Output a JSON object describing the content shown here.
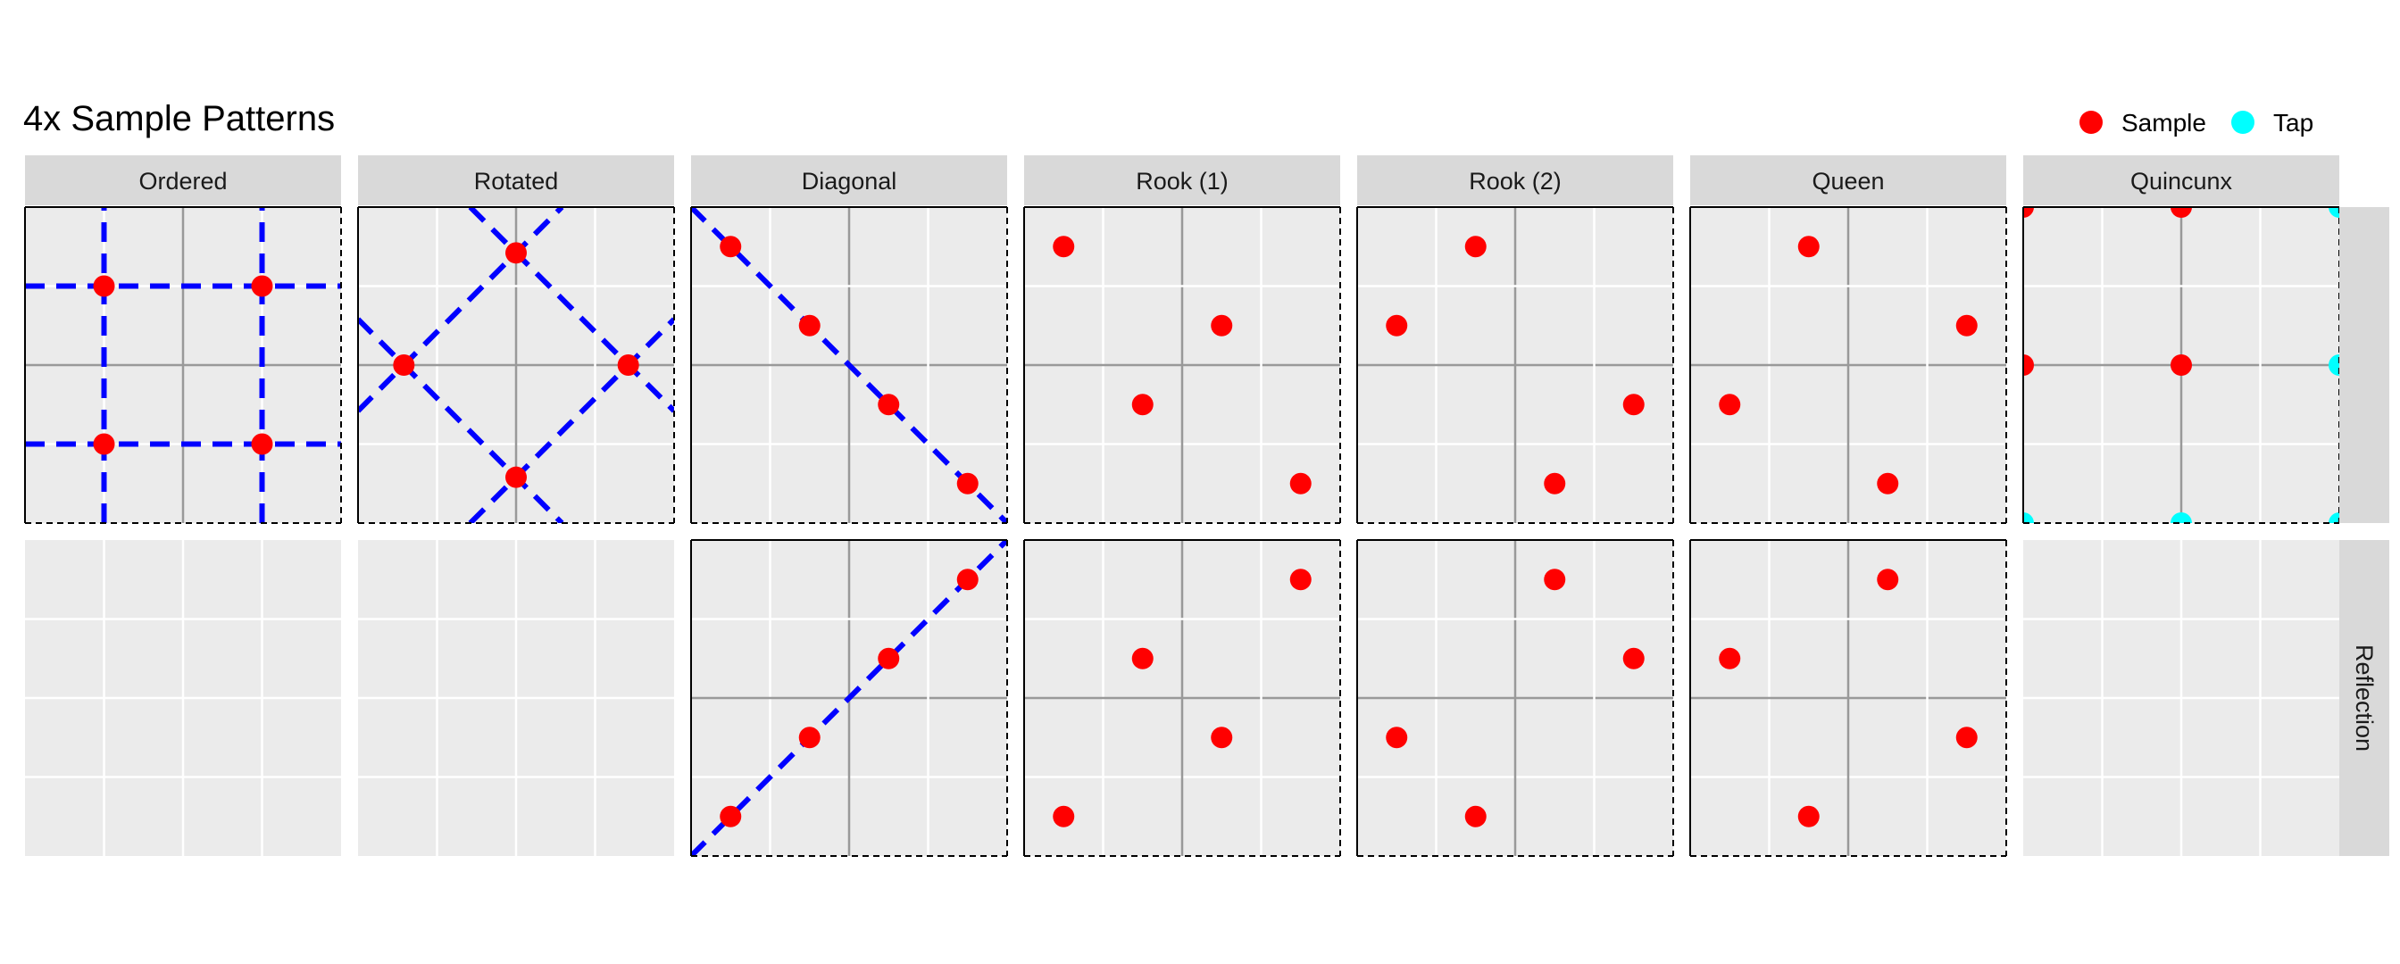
{
  "chart_data": {
    "type": "scatter",
    "title": "4x Sample Patterns",
    "legend": {
      "placement": "top-right",
      "entries": [
        {
          "label": "Sample",
          "color": "#ff0000"
        },
        {
          "label": "Tap",
          "color": "#00ffff"
        }
      ]
    },
    "panel_columns": [
      "Ordered",
      "Rotated",
      "Diagonal",
      "Rook (1)",
      "Rook (2)",
      "Queen",
      "Quincunx"
    ],
    "panel_rows": [
      "",
      "Reflection"
    ],
    "xlim": [
      0,
      1
    ],
    "ylim": [
      0,
      1
    ],
    "grid": true,
    "colors": {
      "sample": "#ff0000",
      "tap": "#00ffff",
      "guide_line": "#0000ff",
      "panel_bg": "#ebebeb",
      "strip_bg": "#d9d9d9",
      "grid_major": "#ffffff",
      "center_axis": "#999999"
    },
    "panels": [
      {
        "col": "Ordered",
        "row": "",
        "points": [
          {
            "x": 0.25,
            "y": 0.25,
            "type": "Sample"
          },
          {
            "x": 0.75,
            "y": 0.25,
            "type": "Sample"
          },
          {
            "x": 0.25,
            "y": 0.75,
            "type": "Sample"
          },
          {
            "x": 0.75,
            "y": 0.75,
            "type": "Sample"
          }
        ],
        "lines": [
          {
            "x1": 0,
            "y1": 0.25,
            "x2": 1,
            "y2": 0.25
          },
          {
            "x1": 0,
            "y1": 0.75,
            "x2": 1,
            "y2": 0.75
          },
          {
            "x1": 0.25,
            "y1": 0,
            "x2": 0.25,
            "y2": 1
          },
          {
            "x1": 0.75,
            "y1": 0,
            "x2": 0.75,
            "y2": 1
          }
        ]
      },
      {
        "col": "Rotated",
        "row": "",
        "points": [
          {
            "x": 0.5,
            "y": 0.855,
            "type": "Sample"
          },
          {
            "x": 0.145,
            "y": 0.5,
            "type": "Sample"
          },
          {
            "x": 0.855,
            "y": 0.5,
            "type": "Sample"
          },
          {
            "x": 0.5,
            "y": 0.145,
            "type": "Sample"
          }
        ],
        "lines": [
          {
            "x1": 0,
            "y1": 0.355,
            "x2": 0.645,
            "y2": 1
          },
          {
            "x1": 0.355,
            "y1": 0,
            "x2": 1,
            "y2": 0.645
          },
          {
            "x1": 0,
            "y1": 0.645,
            "x2": 0.645,
            "y2": 0
          },
          {
            "x1": 0.355,
            "y1": 1,
            "x2": 1,
            "y2": 0.355
          }
        ]
      },
      {
        "col": "Diagonal",
        "row": "",
        "points": [
          {
            "x": 0.125,
            "y": 0.875,
            "type": "Sample"
          },
          {
            "x": 0.375,
            "y": 0.625,
            "type": "Sample"
          },
          {
            "x": 0.625,
            "y": 0.375,
            "type": "Sample"
          },
          {
            "x": 0.875,
            "y": 0.125,
            "type": "Sample"
          }
        ],
        "lines": [
          {
            "x1": 0,
            "y1": 1,
            "x2": 1,
            "y2": 0
          }
        ]
      },
      {
        "col": "Rook (1)",
        "row": "",
        "points": [
          {
            "x": 0.125,
            "y": 0.875,
            "type": "Sample"
          },
          {
            "x": 0.625,
            "y": 0.625,
            "type": "Sample"
          },
          {
            "x": 0.375,
            "y": 0.375,
            "type": "Sample"
          },
          {
            "x": 0.875,
            "y": 0.125,
            "type": "Sample"
          }
        ],
        "lines": []
      },
      {
        "col": "Rook (2)",
        "row": "",
        "points": [
          {
            "x": 0.375,
            "y": 0.875,
            "type": "Sample"
          },
          {
            "x": 0.125,
            "y": 0.625,
            "type": "Sample"
          },
          {
            "x": 0.875,
            "y": 0.375,
            "type": "Sample"
          },
          {
            "x": 0.625,
            "y": 0.125,
            "type": "Sample"
          }
        ],
        "lines": []
      },
      {
        "col": "Queen",
        "row": "",
        "points": [
          {
            "x": 0.375,
            "y": 0.875,
            "type": "Sample"
          },
          {
            "x": 0.875,
            "y": 0.625,
            "type": "Sample"
          },
          {
            "x": 0.125,
            "y": 0.375,
            "type": "Sample"
          },
          {
            "x": 0.625,
            "y": 0.125,
            "type": "Sample"
          }
        ],
        "lines": []
      },
      {
        "col": "Quincunx",
        "row": "",
        "points": [
          {
            "x": 0,
            "y": 1,
            "type": "Sample"
          },
          {
            "x": 0.5,
            "y": 1,
            "type": "Sample"
          },
          {
            "x": 0,
            "y": 0.5,
            "type": "Sample"
          },
          {
            "x": 0.5,
            "y": 0.5,
            "type": "Sample"
          },
          {
            "x": 1,
            "y": 1,
            "type": "Tap"
          },
          {
            "x": 1,
            "y": 0.5,
            "type": "Tap"
          },
          {
            "x": 0,
            "y": 0,
            "type": "Tap"
          },
          {
            "x": 0.5,
            "y": 0,
            "type": "Tap"
          },
          {
            "x": 1,
            "y": 0,
            "type": "Tap"
          }
        ],
        "lines": []
      },
      {
        "col": "Ordered",
        "row": "Reflection",
        "empty": true,
        "points": [],
        "lines": []
      },
      {
        "col": "Rotated",
        "row": "Reflection",
        "empty": true,
        "points": [],
        "lines": []
      },
      {
        "col": "Diagonal",
        "row": "Reflection",
        "points": [
          {
            "x": 0.875,
            "y": 0.875,
            "type": "Sample"
          },
          {
            "x": 0.625,
            "y": 0.625,
            "type": "Sample"
          },
          {
            "x": 0.375,
            "y": 0.375,
            "type": "Sample"
          },
          {
            "x": 0.125,
            "y": 0.125,
            "type": "Sample"
          }
        ],
        "lines": [
          {
            "x1": 0,
            "y1": 0,
            "x2": 1,
            "y2": 1
          }
        ]
      },
      {
        "col": "Rook (1)",
        "row": "Reflection",
        "points": [
          {
            "x": 0.875,
            "y": 0.875,
            "type": "Sample"
          },
          {
            "x": 0.375,
            "y": 0.625,
            "type": "Sample"
          },
          {
            "x": 0.625,
            "y": 0.375,
            "type": "Sample"
          },
          {
            "x": 0.125,
            "y": 0.125,
            "type": "Sample"
          }
        ],
        "lines": []
      },
      {
        "col": "Rook (2)",
        "row": "Reflection",
        "points": [
          {
            "x": 0.625,
            "y": 0.875,
            "type": "Sample"
          },
          {
            "x": 0.875,
            "y": 0.625,
            "type": "Sample"
          },
          {
            "x": 0.125,
            "y": 0.375,
            "type": "Sample"
          },
          {
            "x": 0.375,
            "y": 0.125,
            "type": "Sample"
          }
        ],
        "lines": []
      },
      {
        "col": "Queen",
        "row": "Reflection",
        "points": [
          {
            "x": 0.625,
            "y": 0.875,
            "type": "Sample"
          },
          {
            "x": 0.125,
            "y": 0.625,
            "type": "Sample"
          },
          {
            "x": 0.875,
            "y": 0.375,
            "type": "Sample"
          },
          {
            "x": 0.375,
            "y": 0.125,
            "type": "Sample"
          }
        ],
        "lines": []
      },
      {
        "col": "Quincunx",
        "row": "Reflection",
        "empty": true,
        "points": [],
        "lines": []
      }
    ]
  }
}
